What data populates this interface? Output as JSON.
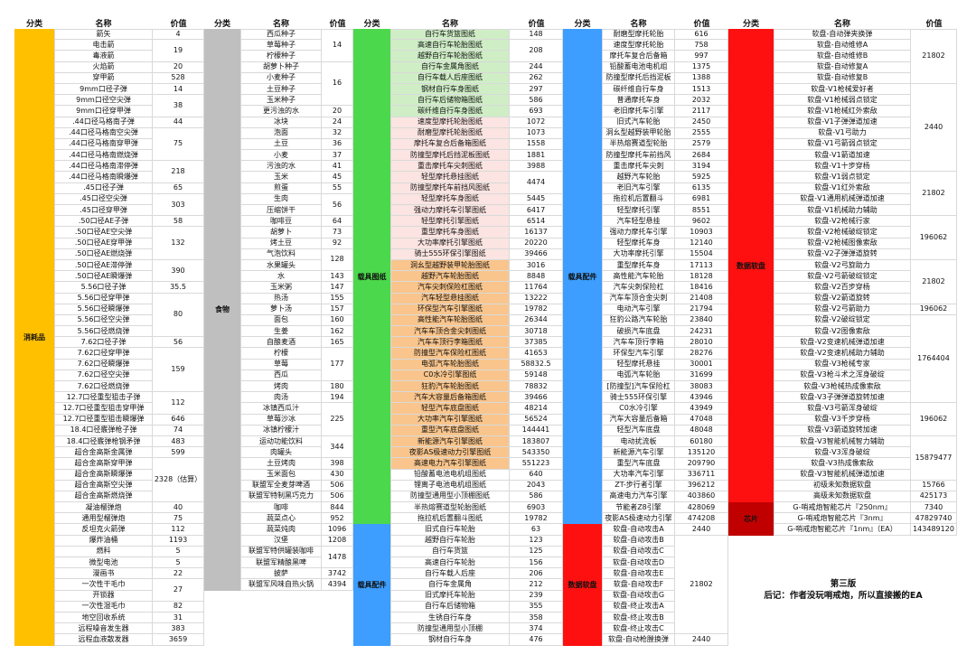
{
  "headers": [
    "分类",
    "名称",
    "价值"
  ],
  "palette": {
    "yellow": "#ffc000",
    "gray": "#bfbfbf",
    "green": "#4cd84c",
    "blue": "#3d9eff",
    "red": "#fe1010",
    "darkred": "#c00000",
    "palegreen": "#cfeec6",
    "palepink": "#fbe4e1",
    "paleorange": "#f9c58c"
  },
  "footer": {
    "line1": "第三版",
    "line2": "后记：作者没玩哨戒炮，所以直接搬的EA"
  },
  "groups": [
    {
      "id": "consumables",
      "categories": [
        [
          "消耗品",
          56,
          "yellow"
        ]
      ],
      "names": [
        "箭矢",
        "电击箭",
        "毒液箭",
        "火焰箭",
        "穿甲箭",
        "9mm口径子弹",
        "9mm口径空尖弹",
        "9mm口径穿甲弹",
        ".44口径马格南子弹",
        ".44口径马格南空尖弹",
        ".44口径马格南穿甲弹",
        ".44口径马格南燃烧弹",
        ".44口径马格南滞停弹",
        ".44口径马格南瞬爆弹",
        ".45口径子弹",
        ".45口径空尖弹",
        ".45口径穿甲弹",
        ".50口径AE子弹",
        ".50口径AE空尖弹",
        ".50口径AE穿甲弹",
        ".50口径AE燃烧弹",
        ".50口径AE滞停弹",
        ".50口径AE瞬爆弹",
        "5.56口径子弹",
        "5.56口径穿甲弹",
        "5.56口径瞬爆弹",
        "5.56口径空尖弹",
        "5.56口径燃烧弹",
        "7.62口径子弹",
        "7.62口径穿甲弹",
        "7.62口径瞬爆弹",
        "7.62口径空尖弹",
        "7.62口径燃烧弹",
        "12.7口径重型狙击子弹",
        "12.7口径重型狙击穿甲弹",
        "12.7口径重型狙击瞬爆弹",
        "18.4口径霰弹枪子弹",
        "18.4口径霰弹枪钢矛弹",
        "超合金高斯金属弹",
        "超合金高斯穿甲弹",
        "超合金高斯瞬爆弹",
        "超合金高斯空尖弹",
        "超合金高斯燃烧弹",
        "凝油榴弹炮",
        "通用型榴弹炮",
        "反坦克火箭弹",
        "爆炸油桶",
        "燃料",
        "微型电池",
        "漫画书",
        "一次性干毛巾",
        "开锁器",
        "一次性湿毛巾",
        "地空回收系统",
        "远程噪音发生器",
        "远程血液散发器"
      ],
      "values": [
        [
          "4",
          1
        ],
        [
          "19",
          2
        ],
        [
          "20",
          1
        ],
        [
          "528",
          1
        ],
        [
          "14",
          1
        ],
        [
          "38",
          2
        ],
        [
          "44",
          1
        ],
        [
          "75",
          3
        ],
        [
          "218",
          2
        ],
        [
          "65",
          1
        ],
        [
          "303",
          2
        ],
        [
          "58",
          1
        ],
        [
          "132",
          3
        ],
        [
          "390",
          2
        ],
        [
          "35.5",
          1
        ],
        [
          "80",
          4
        ],
        [
          "56",
          1
        ],
        [
          "159",
          4
        ],
        [
          "112",
          2
        ],
        [
          "646",
          1
        ],
        [
          "74",
          1
        ],
        [
          "483",
          1
        ],
        [
          "599",
          1
        ],
        [
          "2328（估算）",
          4
        ],
        [
          "40",
          1
        ],
        [
          "75",
          1
        ],
        [
          "112",
          1
        ],
        [
          "1193",
          1
        ],
        [
          "5",
          1
        ],
        [
          "5",
          1
        ],
        [
          "22",
          1
        ],
        [
          "27",
          2
        ],
        [
          "82",
          1
        ],
        [
          "31",
          1
        ],
        [
          "383",
          1
        ],
        [
          "3659",
          1
        ]
      ]
    },
    {
      "id": "food",
      "categories": [
        [
          "食物",
          51,
          "gray"
        ]
      ],
      "names": [
        "西瓜种子",
        "草莓种子",
        "柠檬种子",
        "胡萝卜种子",
        "小麦种子",
        "土豆种子",
        "玉米种子",
        "更污浊的水",
        "冰块",
        "泡面",
        "土豆",
        "小麦",
        "污浊的水",
        "玉米",
        "煎蛋",
        "生肉",
        "压缩饼干",
        "咖啡豆",
        "胡萝卜",
        "烤土豆",
        "气泡饮料",
        "水果罐头",
        "水",
        "玉米粥",
        "热汤",
        "萝卜汤",
        "面包",
        "生姜",
        "自酿麦酒",
        "柠檬",
        "草莓",
        "西瓜",
        "烤肉",
        "肉汤",
        "冰镇西瓜汁",
        "草莓沙冰",
        "冰镇柠檬汁",
        "运动功能饮料",
        "肉罐头",
        "土豆烤肉",
        "玉米面包",
        "联盟军全麦芽啤酒",
        "联盟军特制黑巧克力",
        "咖啡",
        "蔬菜点心",
        "蔬菜炖肉",
        "汉堡",
        "联盟军特供罐装咖啡",
        "联盟军精酿黑啤",
        "披萨",
        "联盟军风味自热火锅"
      ],
      "values": [
        [
          "14",
          3
        ],
        [
          "16",
          4
        ],
        [
          "20",
          1
        ],
        [
          "24",
          1
        ],
        [
          "32",
          1
        ],
        [
          "36",
          1
        ],
        [
          "37",
          1
        ],
        [
          "41",
          1
        ],
        [
          "45",
          1
        ],
        [
          "55",
          1
        ],
        [
          "56",
          2
        ],
        [
          "64",
          1
        ],
        [
          "73",
          1
        ],
        [
          "92",
          1
        ],
        [
          "128",
          2
        ],
        [
          "143",
          1
        ],
        [
          "147",
          1
        ],
        [
          "155",
          1
        ],
        [
          "157",
          1
        ],
        [
          "160",
          1
        ],
        [
          "162",
          1
        ],
        [
          "165",
          1
        ],
        [
          "177",
          3
        ],
        [
          "180",
          1
        ],
        [
          "194",
          1
        ],
        [
          "225",
          3
        ],
        [
          "344",
          2
        ],
        [
          "398",
          1
        ],
        [
          "430",
          1
        ],
        [
          "506",
          1
        ],
        [
          "506",
          1
        ],
        [
          "844",
          1
        ],
        [
          "952",
          1
        ],
        [
          "1096",
          1
        ],
        [
          "1208",
          1
        ],
        [
          "1478",
          2
        ],
        [
          "3742",
          1
        ],
        [
          "4394",
          1
        ]
      ]
    },
    {
      "id": "vehicle-blueprints",
      "categories": [
        [
          "载具图纸",
          45,
          "green"
        ],
        [
          "载具配件",
          11,
          "blue"
        ]
      ],
      "name_bg": [
        [
          1,
          8,
          "palegreen"
        ],
        [
          9,
          21,
          "palepink"
        ],
        [
          22,
          40,
          "paleorange"
        ]
      ],
      "names": [
        "自行车货篮图纸",
        "高速自行车轮胎图纸",
        "越野自行车轮胎图纸",
        "自行车金属角图纸",
        "自行车载人后座图纸",
        "钢材自行车身图纸",
        "自行车后储物箱图纸",
        "碳纤维自行车身图纸",
        "速度型摩托轮胎图纸",
        "耐磨型摩托轮胎图纸",
        "摩托车复合后备箱图纸",
        "防撞型摩托后挡泥板图纸",
        "重击摩托车尖刺图纸",
        "轻型摩托悬挂图纸",
        "防撞型摩托车前挡风图纸",
        "轻型摩托车身图纸",
        "强动力摩托车引擎图纸",
        "轻型摩托引擎图纸",
        "重型摩托车身图纸",
        "大功率摩托引擎图纸",
        "骑士555环保引擎图纸",
        "洞幺型越野装甲轮胎图纸",
        "越野汽车轮胎图纸",
        "汽车尖刺保险杠图纸",
        "汽车轻型悬挂图纸",
        "环保型汽车引擎图纸",
        "高性能汽车轮胎图纸",
        "汽车车顶合金尖刺图纸",
        "汽车车顶行李箱图纸",
        "防撞型汽车保险杠图纸",
        "电弧汽车轮胎图纸",
        "C0水冷引擎图纸",
        "狂豹汽车轮胎图纸",
        "汽车大容量后备箱图纸",
        "轻型汽车底盘图纸",
        "大功率汽车引擎图纸",
        "重型汽车底盘图纸",
        "新能源汽车引擎图纸",
        "夜影AS极速动力引擎图纸",
        "高速电力汽车引擎图纸",
        "铅酸蓄电池电机组图纸",
        "锂离子电池电机组图纸",
        "防撞型通用型小顶棚图纸",
        "半热熔赛道型轮胎图纸",
        "拖拉机后置翻斗图纸",
        "旧式自行车轮胎",
        "越野自行车轮胎",
        "自行车货篮",
        "高速自行车轮胎",
        "自行车载人后座",
        "自行车金属角",
        "旧式摩托车轮胎",
        "自行车后储物箱",
        "生锈自行车身",
        "防撞型通用型小顶棚",
        "钢材自行车身"
      ],
      "values": [
        [
          "148",
          1
        ],
        [
          "208",
          2
        ],
        [
          "244",
          1
        ],
        [
          "262",
          1
        ],
        [
          "297",
          1
        ],
        [
          "586",
          1
        ],
        [
          "693",
          1
        ],
        [
          "1072",
          1
        ],
        [
          "1073",
          1
        ],
        [
          "1558",
          1
        ],
        [
          "1881",
          1
        ],
        [
          "3988",
          1
        ],
        [
          "4474",
          2
        ],
        [
          "5445",
          1
        ],
        [
          "6417",
          1
        ],
        [
          "6514",
          1
        ],
        [
          "16137",
          1
        ],
        [
          "20220",
          1
        ],
        [
          "39466",
          1
        ],
        [
          "3016",
          1
        ],
        [
          "8848",
          1
        ],
        [
          "11764",
          1
        ],
        [
          "13222",
          1
        ],
        [
          "19782",
          1
        ],
        [
          "26344",
          1
        ],
        [
          "30718",
          1
        ],
        [
          "37385",
          1
        ],
        [
          "41653",
          1
        ],
        [
          "58832.5",
          1
        ],
        [
          "59148",
          1
        ],
        [
          "78832",
          1
        ],
        [
          "39466",
          1
        ],
        [
          "48214",
          1
        ],
        [
          "56524",
          1
        ],
        [
          "144441",
          1
        ],
        [
          "183807",
          1
        ],
        [
          "543350",
          1
        ],
        [
          "551223",
          1
        ],
        [
          "640",
          1
        ],
        [
          "2043",
          1
        ],
        [
          "586",
          1
        ],
        [
          "6903",
          1
        ],
        [
          "19782",
          1
        ],
        [
          "63",
          1
        ],
        [
          "123",
          1
        ],
        [
          "125",
          1
        ],
        [
          "156",
          1
        ],
        [
          "206",
          1
        ],
        [
          "212",
          1
        ],
        [
          "239",
          1
        ],
        [
          "355",
          1
        ],
        [
          "358",
          1
        ],
        [
          "374",
          1
        ],
        [
          "476",
          1
        ]
      ]
    },
    {
      "id": "vehicle-parts",
      "categories": [
        [
          "载具配件",
          45,
          "blue"
        ],
        [
          "数据软盘",
          11,
          "red"
        ]
      ],
      "names": [
        "耐磨型摩托轮胎",
        "速度型摩托轮胎",
        "摩托车复合后备箱",
        "铅酸蓄电池电机组",
        "防撞型摩托后挡泥板",
        "碳纤维自行车身",
        "普通摩托车身",
        "老旧摩托车引擎",
        "旧式汽车轮胎",
        "洞幺型越野装甲轮胎",
        "半热熔赛道型轮胎",
        "防撞型摩托车前挡风",
        "重击摩托车尖刺",
        "越野汽车轮胎",
        "老旧汽车引擎",
        "拖拉机后置翻斗",
        "轻型摩托引擎",
        "汽车轻型悬挂",
        "强动力摩托车引擎",
        "轻型摩托车身",
        "大功率摩托引擎",
        "重型摩托车身",
        "高性能汽车轮胎",
        "汽车尖刺保险杠",
        "汽车车顶合金尖刺",
        "电动汽车引擎",
        "狂豹公路汽车轮胎",
        "破损汽车底盘",
        "汽车车顶行李箱",
        "环保型汽车引擎",
        "轻型摩托悬挂",
        "电弧汽车轮胎",
        "[防撞型]汽车保险杠",
        "骑士555环保引擎",
        "C0水冷引擎",
        "汽车大容量后备箱",
        "轻型汽车底盘",
        "电动扰流板",
        "新能源汽车引擎",
        "重型汽车底盘",
        "大功率汽车引擎",
        "ZT-步行者引擎",
        "高速电力汽车引擎",
        "节能者Z8引擎",
        "夜影AS极速动力引擎",
        "软盘-自动攻击A",
        "软盘-自动攻击B",
        "软盘-自动攻击C",
        "软盘-自动攻击D",
        "软盘-自动攻击E",
        "软盘-自动攻击F",
        "软盘-自动攻击G",
        "软盘-终止攻击A",
        "软盘-终止攻击B",
        "软盘-终止攻击C",
        "软盘-自动枪膛换弹"
      ],
      "values": [
        [
          "616",
          1
        ],
        [
          "758",
          1
        ],
        [
          "997",
          1
        ],
        [
          "1375",
          1
        ],
        [
          "1388",
          1
        ],
        [
          "1513",
          1
        ],
        [
          "2032",
          1
        ],
        [
          "2117",
          1
        ],
        [
          "2450",
          1
        ],
        [
          "2555",
          1
        ],
        [
          "2579",
          1
        ],
        [
          "2684",
          1
        ],
        [
          "3194",
          1
        ],
        [
          "5925",
          1
        ],
        [
          "6135",
          1
        ],
        [
          "6981",
          1
        ],
        [
          "8551",
          1
        ],
        [
          "9602",
          1
        ],
        [
          "10903",
          1
        ],
        [
          "12140",
          1
        ],
        [
          "15504",
          1
        ],
        [
          "17113",
          1
        ],
        [
          "18128",
          1
        ],
        [
          "18416",
          1
        ],
        [
          "21408",
          1
        ],
        [
          "21794",
          1
        ],
        [
          "23840",
          1
        ],
        [
          "24231",
          1
        ],
        [
          "28010",
          1
        ],
        [
          "28276",
          1
        ],
        [
          "30001",
          1
        ],
        [
          "31699",
          1
        ],
        [
          "38083",
          1
        ],
        [
          "43946",
          1
        ],
        [
          "43949",
          1
        ],
        [
          "47048",
          1
        ],
        [
          "48048",
          1
        ],
        [
          "60180",
          1
        ],
        [
          "135120",
          1
        ],
        [
          "209790",
          1
        ],
        [
          "336711",
          1
        ],
        [
          "396212",
          1
        ],
        [
          "403860",
          1
        ],
        [
          "428069",
          1
        ],
        [
          "474208",
          1
        ],
        [
          "2440",
          1
        ],
        [
          "21802",
          9
        ],
        [
          "2440",
          1
        ]
      ]
    },
    {
      "id": "data-disks",
      "categories": [
        [
          "数据软盘",
          43,
          "red"
        ],
        [
          "芯片",
          3,
          "darkred"
        ]
      ],
      "names": [
        "软盘-自动弹夹换弹",
        "软盘-自动维修A",
        "软盘-自动维修B",
        "软盘-自动修复A",
        "软盘-自动修复B",
        "软盘-V1枪械爱好者",
        "软盘-V1枪械弱点锁定",
        "软盘-V1枪械红外索敌",
        "软盘-V1子弹弹道加速",
        "软盘-V1弓助力",
        "软盘-V1弓箭弱点锁定",
        "软盘-V1箭道加速",
        "软盘-V1十步穿杨",
        "软盘-V1弱点锁定",
        "软盘-V1红外索敌",
        "软盘-V1通用机械弹道加速",
        "软盘-V1机械助力辅助",
        "软盘-V2枪械行家",
        "软盘-V2枪械破绽锁定",
        "软盘-V2枪械图像索敌",
        "软盘-V2子弹弹道旋转",
        "软盘-V2弓旋助力",
        "软盘-V2弓箭破绽锁定",
        "软盘-V2百步穿杨",
        "软盘-V2箭道旋转",
        "软盘-V2弓箭助力",
        "软盘-V2破绽锁定",
        "软盘-V2图像索敌",
        "软盘-V2变速机械弹道加速",
        "软盘-V2变速机械助力辅助",
        "软盘-V3枪械专家",
        "软盘-V3枪斗术之浑身破绽",
        "软盘-V3枪械热成像索敌",
        "软盘-V3子弹弹道旋转加速",
        "软盘-V3弓箭浑身破绽",
        "软盘-V3千步穿杨",
        "软盘-V3箭道旋转加速",
        "软盘-V3智能机械智力辅助",
        "软盘-V3浑身破绽",
        "软盘-V3热成像索敌",
        "软盘-V3智能机械弹道加速",
        "初级未知数据软盘",
        "高级未知数据软盘",
        "G-哨戒炮智能芯片『250nm』",
        "G-哨戒炮智能芯片『3nm』",
        "G-哨戒炮智能芯片『1nm』（EA）"
      ],
      "values": [
        [
          "21802",
          5
        ],
        [
          "2440",
          8
        ],
        [
          "21802",
          4
        ],
        [
          "196062",
          4
        ],
        [
          "21802",
          4
        ],
        [
          "196062",
          1
        ],
        [
          "1764404",
          8
        ],
        [
          "196062",
          3
        ],
        [
          "15879477",
          4
        ],
        [
          "15766",
          1
        ],
        [
          "425173",
          1
        ],
        [
          "7340",
          1
        ],
        [
          "47829740",
          1
        ],
        [
          "143489120",
          1
        ]
      ]
    }
  ]
}
